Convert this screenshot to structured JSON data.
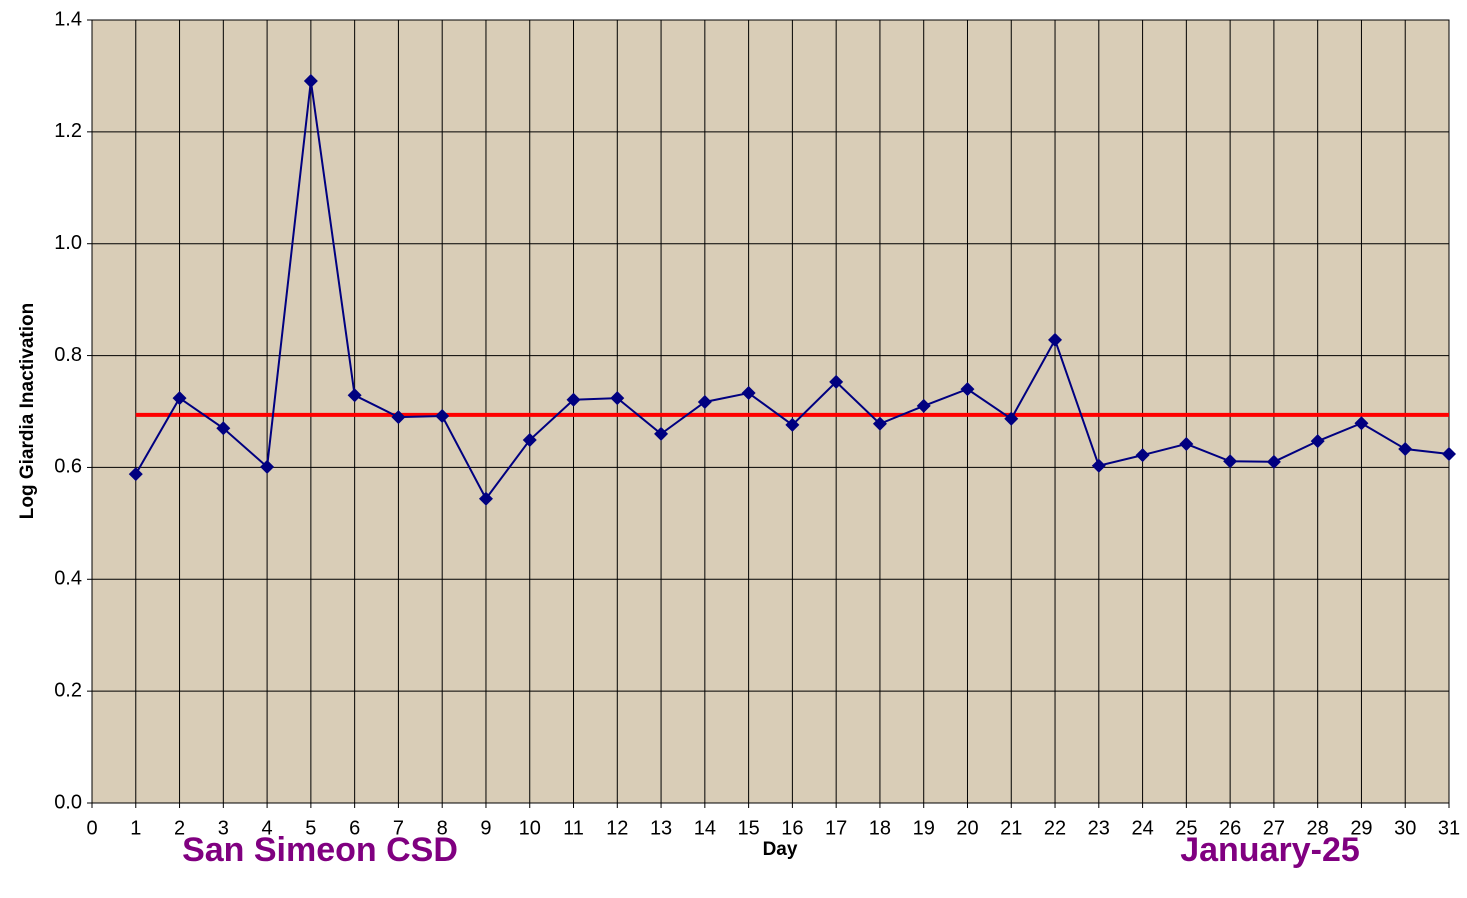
{
  "chart_data": {
    "type": "line",
    "x": [
      1,
      2,
      3,
      4,
      5,
      6,
      7,
      8,
      9,
      10,
      11,
      12,
      13,
      14,
      15,
      16,
      17,
      18,
      19,
      20,
      21,
      22,
      23,
      24,
      25,
      26,
      27,
      28,
      29,
      30,
      31
    ],
    "values": [
      0.588,
      0.724,
      0.67,
      0.601,
      1.291,
      0.729,
      0.69,
      0.692,
      0.544,
      0.649,
      0.721,
      0.724,
      0.66,
      0.717,
      0.733,
      0.676,
      0.753,
      0.678,
      0.71,
      0.74,
      0.687,
      0.828,
      0.603,
      0.622,
      0.642,
      0.611,
      0.61,
      0.647,
      0.679,
      0.633,
      0.624
    ],
    "color": "#000080",
    "reference": {
      "value": 0.694,
      "x": [
        1,
        31
      ],
      "color": "#ff0000"
    },
    "xlabel": "Day",
    "ylabel": "Log Giardia Inactivation",
    "annotations": [
      "San Simeon CSD",
      "January-25"
    ],
    "annotation_color": "#800080",
    "xlim": [
      0,
      31
    ],
    "xticks": [
      0,
      1,
      2,
      3,
      4,
      5,
      6,
      7,
      8,
      9,
      10,
      11,
      12,
      13,
      14,
      15,
      16,
      17,
      18,
      19,
      20,
      21,
      22,
      23,
      24,
      25,
      26,
      27,
      28,
      29,
      30,
      31
    ],
    "ylim": [
      0,
      1.4
    ],
    "yticks": [
      {
        "value": 0,
        "label": "0.0"
      },
      0.2,
      0.4,
      0.6,
      0.8,
      {
        "value": 1,
        "label": "1.0"
      },
      1.2,
      1.4
    ],
    "grid": true
  }
}
